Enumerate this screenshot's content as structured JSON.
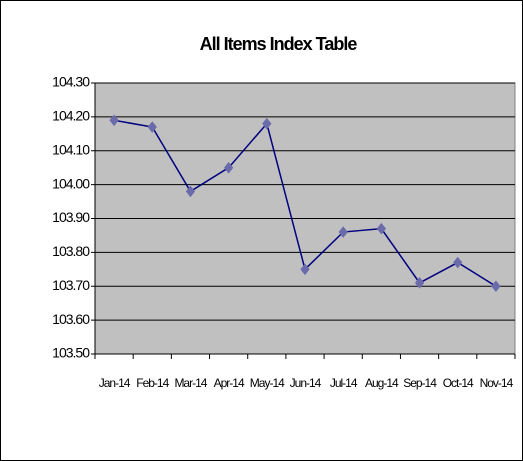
{
  "chart_data": {
    "type": "line",
    "title": "All Items Index Table",
    "categories": [
      "Jan-14",
      "Feb-14",
      "Mar-14",
      "Apr-14",
      "May-14",
      "Jun-14",
      "Jul-14",
      "Aug-14",
      "Sep-14",
      "Oct-14",
      "Nov-14"
    ],
    "values": [
      104.19,
      104.17,
      103.98,
      104.05,
      104.18,
      103.75,
      103.86,
      103.87,
      103.71,
      103.77,
      103.7
    ],
    "color": "#000080",
    "marker_color": "#6b6bab",
    "plot_background": "#c0c0c0",
    "ylim": [
      103.5,
      104.3
    ],
    "yticks": [
      {
        "value": 103.5,
        "label": "103.50"
      },
      {
        "value": 103.6,
        "label": "103.60"
      },
      {
        "value": 103.7,
        "label": "103.70"
      },
      {
        "value": 103.8,
        "label": "103.80"
      },
      {
        "value": 103.9,
        "label": "103.90"
      },
      {
        "value": 104.0,
        "label": "104.00"
      },
      {
        "value": 104.1,
        "label": "104.10"
      },
      {
        "value": 104.2,
        "label": "104.20"
      },
      {
        "value": 104.3,
        "label": "104.30"
      }
    ],
    "grid": true
  }
}
